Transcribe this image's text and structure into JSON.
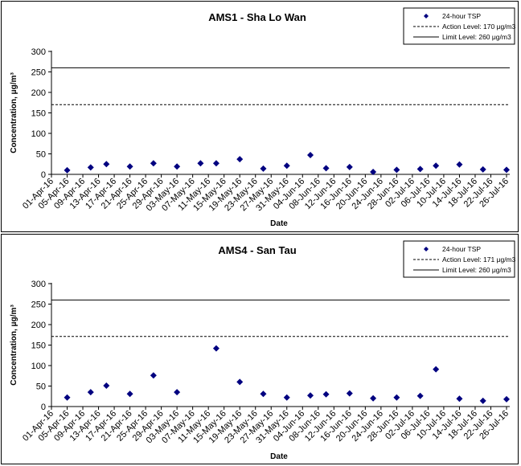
{
  "chart_data": [
    {
      "type": "scatter",
      "title": "AMS1 - Sha Lo Wan",
      "xlabel": "Date",
      "ylabel": "Concentration, μg/m³",
      "ylim": [
        0,
        300
      ],
      "y_ticks": [
        "0",
        "50",
        "100",
        "150",
        "200",
        "250",
        "300"
      ],
      "x_tick_labels": [
        "01-Apr-16",
        "05-Apr-16",
        "09-Apr-16",
        "13-Apr-16",
        "17-Apr-16",
        "21-Apr-16",
        "25-Apr-16",
        "29-Apr-16",
        "03-May-16",
        "07-May-16",
        "11-May-16",
        "15-May-16",
        "19-May-16",
        "23-May-16",
        "27-May-16",
        "31-May-16",
        "04-Jun-16",
        "08-Jun-16",
        "12-Jun-16",
        "16-Jun-16",
        "20-Jun-16",
        "24-Jun-16",
        "28-Jun-16",
        "02-Jul-16",
        "06-Jul-16",
        "10-Jul-16",
        "14-Jul-16",
        "18-Jul-16",
        "22-Jul-16",
        "26-Jul-16"
      ],
      "legend_position": "top-right",
      "series": [
        {
          "name": "24-hour TSP",
          "color": "#000080",
          "points": [
            {
              "x": "05-Apr-16",
              "y": 10
            },
            {
              "x": "11-Apr-16",
              "y": 17
            },
            {
              "x": "15-Apr-16",
              "y": 25
            },
            {
              "x": "21-Apr-16",
              "y": 19
            },
            {
              "x": "27-Apr-16",
              "y": 27
            },
            {
              "x": "03-May-16",
              "y": 19
            },
            {
              "x": "09-May-16",
              "y": 27
            },
            {
              "x": "13-May-16",
              "y": 27
            },
            {
              "x": "19-May-16",
              "y": 37
            },
            {
              "x": "25-May-16",
              "y": 14
            },
            {
              "x": "31-May-16",
              "y": 21
            },
            {
              "x": "06-Jun-16",
              "y": 47
            },
            {
              "x": "10-Jun-16",
              "y": 15
            },
            {
              "x": "16-Jun-16",
              "y": 18
            },
            {
              "x": "22-Jun-16",
              "y": 6
            },
            {
              "x": "28-Jun-16",
              "y": 11
            },
            {
              "x": "04-Jul-16",
              "y": 13
            },
            {
              "x": "08-Jul-16",
              "y": 21
            },
            {
              "x": "14-Jul-16",
              "y": 24
            },
            {
              "x": "20-Jul-16",
              "y": 12
            },
            {
              "x": "26-Jul-16",
              "y": 11
            }
          ]
        }
      ],
      "reference_lines": [
        {
          "name": "Action Level: 170 μg/m3",
          "y": 170,
          "style": "dashed"
        },
        {
          "name": "Limit Level: 260 μg/m3",
          "y": 260,
          "style": "solid"
        }
      ]
    },
    {
      "type": "scatter",
      "title": "AMS4 - San Tau",
      "xlabel": "Date",
      "ylabel": "Concentration, μg/m³",
      "ylim": [
        0,
        300
      ],
      "y_ticks": [
        "0",
        "50",
        "100",
        "150",
        "200",
        "250",
        "300"
      ],
      "x_tick_labels": [
        "01-Apr-16",
        "05-Apr-16",
        "09-Apr-16",
        "13-Apr-16",
        "17-Apr-16",
        "21-Apr-16",
        "25-Apr-16",
        "29-Apr-16",
        "03-May-16",
        "07-May-16",
        "11-May-16",
        "15-May-16",
        "19-May-16",
        "23-May-16",
        "27-May-16",
        "31-May-16",
        "04-Jun-16",
        "08-Jun-16",
        "12-Jun-16",
        "16-Jun-16",
        "20-Jun-16",
        "24-Jun-16",
        "28-Jun-16",
        "02-Jul-16",
        "06-Jul-16",
        "10-Jul-16",
        "14-Jul-16",
        "18-Jul-16",
        "22-Jul-16",
        "26-Jul-16"
      ],
      "legend_position": "top-right",
      "series": [
        {
          "name": "24-hour TSP",
          "color": "#000080",
          "points": [
            {
              "x": "05-Apr-16",
              "y": 22
            },
            {
              "x": "11-Apr-16",
              "y": 35
            },
            {
              "x": "15-Apr-16",
              "y": 51
            },
            {
              "x": "21-Apr-16",
              "y": 31
            },
            {
              "x": "27-Apr-16",
              "y": 76
            },
            {
              "x": "03-May-16",
              "y": 35
            },
            {
              "x": "13-May-16",
              "y": 142
            },
            {
              "x": "19-May-16",
              "y": 60
            },
            {
              "x": "25-May-16",
              "y": 31
            },
            {
              "x": "31-May-16",
              "y": 22
            },
            {
              "x": "06-Jun-16",
              "y": 27
            },
            {
              "x": "10-Jun-16",
              "y": 30
            },
            {
              "x": "16-Jun-16",
              "y": 32
            },
            {
              "x": "22-Jun-16",
              "y": 20
            },
            {
              "x": "28-Jun-16",
              "y": 22
            },
            {
              "x": "04-Jul-16",
              "y": 26
            },
            {
              "x": "08-Jul-16",
              "y": 91
            },
            {
              "x": "14-Jul-16",
              "y": 19
            },
            {
              "x": "20-Jul-16",
              "y": 14
            },
            {
              "x": "26-Jul-16",
              "y": 18
            }
          ]
        }
      ],
      "reference_lines": [
        {
          "name": "Action Level: 171 μg/m3",
          "y": 171,
          "style": "dashed"
        },
        {
          "name": "Limit Level: 260 μg/m3",
          "y": 260,
          "style": "solid"
        }
      ]
    }
  ]
}
